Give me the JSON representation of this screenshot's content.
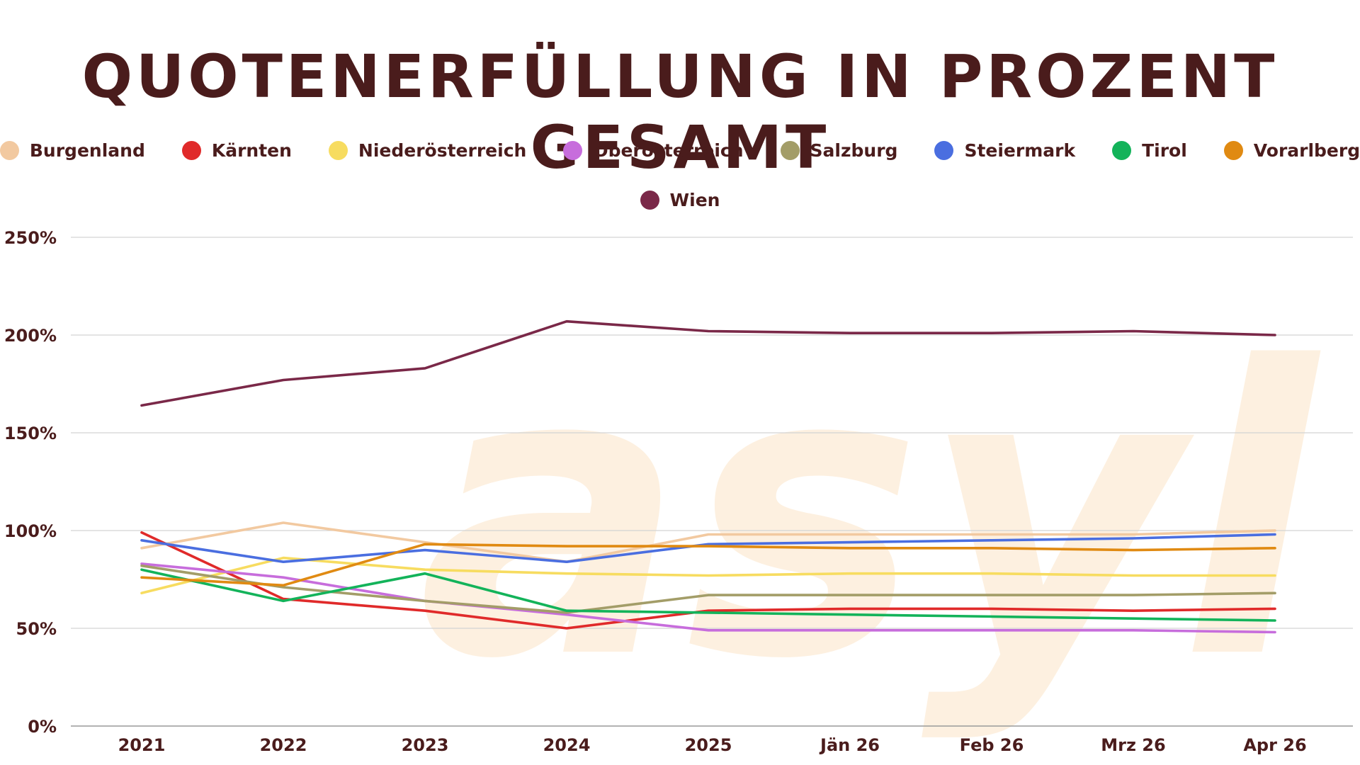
{
  "chart_data": {
    "type": "line",
    "title": "QUOTENERFÜLLUNG IN PROZENT GESAMT",
    "watermark": "asyl",
    "categories": [
      "2021",
      "2022",
      "2023",
      "2024",
      "2025",
      "Jän 26",
      "Feb 26",
      "Mrz 26",
      "Apr 26"
    ],
    "y_ticks": [
      "0%",
      "50%",
      "100%",
      "150%",
      "200%",
      "250%"
    ],
    "ylim": [
      0,
      250
    ],
    "grid": true,
    "legend_position": "top",
    "series": [
      {
        "name": "Burgenland",
        "color": "#f2c9a0",
        "values": [
          91,
          104,
          94,
          84,
          98,
          98,
          98,
          98,
          100
        ]
      },
      {
        "name": "Kärnten",
        "color": "#e02a2a",
        "values": [
          99,
          65,
          59,
          50,
          59,
          60,
          60,
          59,
          60
        ]
      },
      {
        "name": "Niederösterreich",
        "color": "#f7dc60",
        "values": [
          68,
          86,
          80,
          78,
          77,
          78,
          78,
          77,
          77
        ]
      },
      {
        "name": "Oberösterreich",
        "color": "#c76ddc",
        "values": [
          83,
          76,
          64,
          57,
          49,
          49,
          49,
          49,
          48
        ]
      },
      {
        "name": "Salzburg",
        "color": "#a39d68",
        "values": [
          82,
          71,
          64,
          58,
          67,
          67,
          67,
          67,
          68
        ]
      },
      {
        "name": "Steiermark",
        "color": "#4a6ee0",
        "values": [
          95,
          84,
          90,
          84,
          93,
          94,
          95,
          96,
          98
        ]
      },
      {
        "name": "Tirol",
        "color": "#13b35a",
        "values": [
          80,
          64,
          78,
          59,
          58,
          57,
          56,
          55,
          54
        ]
      },
      {
        "name": "Vorarlberg",
        "color": "#e08a12",
        "values": [
          76,
          72,
          93,
          92,
          92,
          91,
          91,
          90,
          91
        ]
      },
      {
        "name": "Wien",
        "color": "#7a2848",
        "values": [
          164,
          177,
          183,
          207,
          202,
          201,
          201,
          202,
          200
        ]
      }
    ]
  }
}
